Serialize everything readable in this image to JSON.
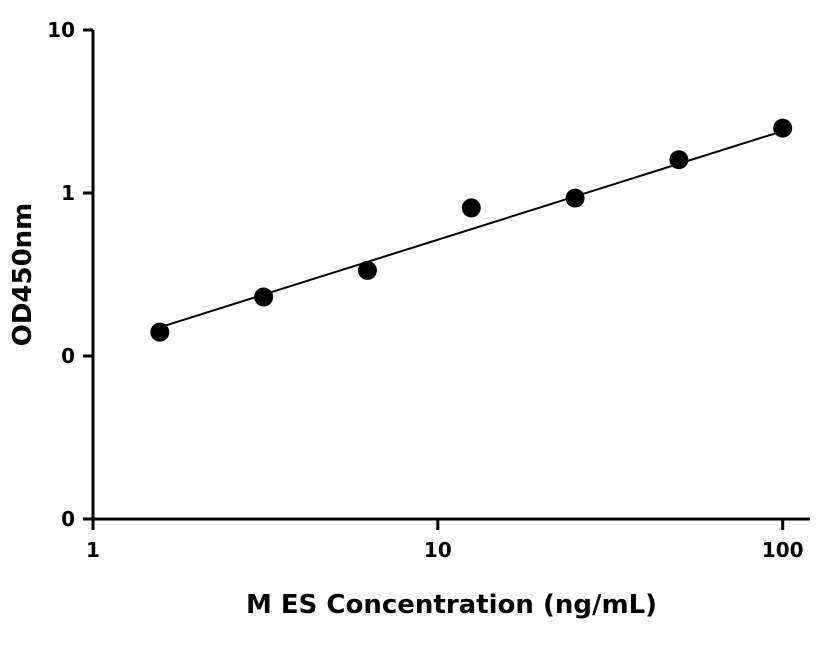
{
  "chart_data": {
    "type": "scatter",
    "title": "",
    "xlabel": "M ES Concentration (ng/mL)",
    "ylabel": "OD450nm",
    "x_scale": "log",
    "y_scale": "log",
    "xlim": [
      1,
      120
    ],
    "ylim": [
      0.01,
      10
    ],
    "x_ticks": [
      {
        "value": 1,
        "label": "1"
      },
      {
        "value": 10,
        "label": "10"
      },
      {
        "value": 100,
        "label": "100"
      }
    ],
    "y_ticks": [
      {
        "value": 0.01,
        "label": "0"
      },
      {
        "value": 0.1,
        "label": "0"
      },
      {
        "value": 1,
        "label": "1"
      },
      {
        "value": 10,
        "label": "10"
      }
    ],
    "grid": false,
    "legend": "none",
    "series": [
      {
        "x": [
          1.5625,
          3.125,
          6.25,
          12.5,
          25,
          50,
          100
        ],
        "y": [
          0.14,
          0.23,
          0.335,
          0.81,
          0.93,
          1.6,
          2.5
        ]
      }
    ],
    "fit_line": {
      "x": [
        1.5625,
        100
      ],
      "y": [
        0.15,
        2.4
      ]
    },
    "colors": {
      "marker": "#000000",
      "line": "#000000",
      "axis": "#000000"
    }
  }
}
